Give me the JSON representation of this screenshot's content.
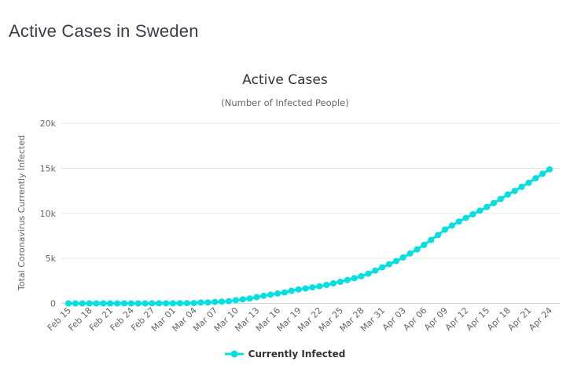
{
  "page": {
    "title": "Active Cases in Sweden"
  },
  "colors": {
    "series": "#00e0e0",
    "grid": "#e6e6e6",
    "axis_line": "#ccd6eb",
    "muted_text": "#666666",
    "title_text": "#333333",
    "page_title_text": "#3c3c47"
  },
  "chart_data": {
    "type": "line",
    "title": "Active Cases",
    "subtitle": "(Number of Infected People)",
    "xlabel": "",
    "ylabel": "Total Coronavirus Currently Infected",
    "legend_position": "bottom",
    "grid": true,
    "ylim": [
      0,
      20000
    ],
    "ytick_values": [
      0,
      5000,
      10000,
      15000,
      20000
    ],
    "ytick_labels": [
      "0",
      "5k",
      "10k",
      "15k",
      "20k"
    ],
    "xtick_every": 3,
    "x": [
      "Feb 15",
      "Feb 16",
      "Feb 17",
      "Feb 18",
      "Feb 19",
      "Feb 20",
      "Feb 21",
      "Feb 22",
      "Feb 23",
      "Feb 24",
      "Feb 25",
      "Feb 26",
      "Feb 27",
      "Feb 28",
      "Feb 29",
      "Mar 01",
      "Mar 02",
      "Mar 03",
      "Mar 04",
      "Mar 05",
      "Mar 06",
      "Mar 07",
      "Mar 08",
      "Mar 09",
      "Mar 10",
      "Mar 11",
      "Mar 12",
      "Mar 13",
      "Mar 14",
      "Mar 15",
      "Mar 16",
      "Mar 17",
      "Mar 18",
      "Mar 19",
      "Mar 20",
      "Mar 21",
      "Mar 22",
      "Mar 23",
      "Mar 24",
      "Mar 25",
      "Mar 26",
      "Mar 27",
      "Mar 28",
      "Mar 29",
      "Mar 30",
      "Mar 31",
      "Apr 01",
      "Apr 02",
      "Apr 03",
      "Apr 04",
      "Apr 05",
      "Apr 06",
      "Apr 07",
      "Apr 08",
      "Apr 09",
      "Apr 10",
      "Apr 11",
      "Apr 12",
      "Apr 13",
      "Apr 14",
      "Apr 15",
      "Apr 16",
      "Apr 17",
      "Apr 18",
      "Apr 19",
      "Apr 20",
      "Apr 21",
      "Apr 22",
      "Apr 23",
      "Apr 24"
    ],
    "series": [
      {
        "name": "Currently Infected",
        "marker": "circle",
        "values": [
          1,
          1,
          1,
          1,
          1,
          1,
          1,
          1,
          1,
          1,
          1,
          2,
          7,
          10,
          12,
          13,
          15,
          22,
          35,
          94,
          102,
          161,
          203,
          248,
          355,
          445,
          540,
          700,
          850,
          970,
          1100,
          1220,
          1400,
          1550,
          1660,
          1780,
          1900,
          2050,
          2220,
          2400,
          2600,
          2800,
          3020,
          3300,
          3650,
          4000,
          4350,
          4700,
          5100,
          5550,
          6000,
          6500,
          7050,
          7600,
          8200,
          8650,
          9100,
          9500,
          9900,
          10300,
          10700,
          11150,
          11600,
          12100,
          12500,
          12950,
          13400,
          13900,
          14400,
          14900
        ]
      }
    ]
  }
}
